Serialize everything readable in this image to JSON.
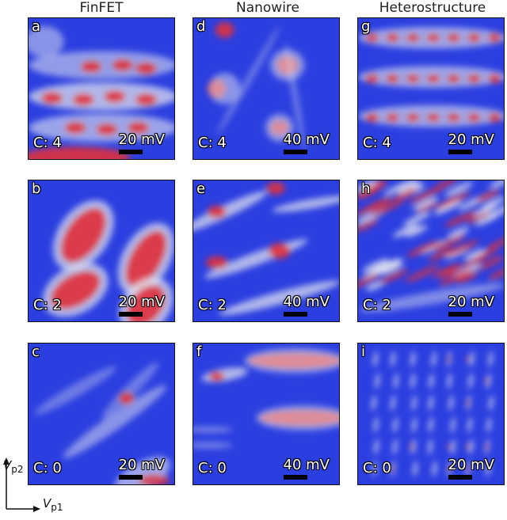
{
  "columns": [
    "FinFET",
    "Nanowire",
    "Heterostructure"
  ],
  "panels": [
    {
      "tag": "a",
      "charge": "C: 4",
      "scale": "20 mV"
    },
    {
      "tag": "b",
      "charge": "C: 2",
      "scale": "20 mV"
    },
    {
      "tag": "c",
      "charge": "C: 0",
      "scale": "20 mV"
    },
    {
      "tag": "d",
      "charge": "C: 4",
      "scale": "40 mV"
    },
    {
      "tag": "e",
      "charge": "C: 2",
      "scale": "40 mV"
    },
    {
      "tag": "f",
      "charge": "C: 0",
      "scale": "40 mV"
    },
    {
      "tag": "g",
      "charge": "C: 4",
      "scale": "20 mV"
    },
    {
      "tag": "h",
      "charge": "C: 2",
      "scale": "20 mV"
    },
    {
      "tag": "i",
      "charge": "C: 0",
      "scale": "20 mV"
    }
  ],
  "axes": {
    "y_label": "V",
    "y_sub": "p2",
    "x_label": "V",
    "x_sub": "p1"
  },
  "colors": {
    "background": "#2b3fe0",
    "highlight": "#e8e8f0",
    "hot": "#e0303a"
  }
}
